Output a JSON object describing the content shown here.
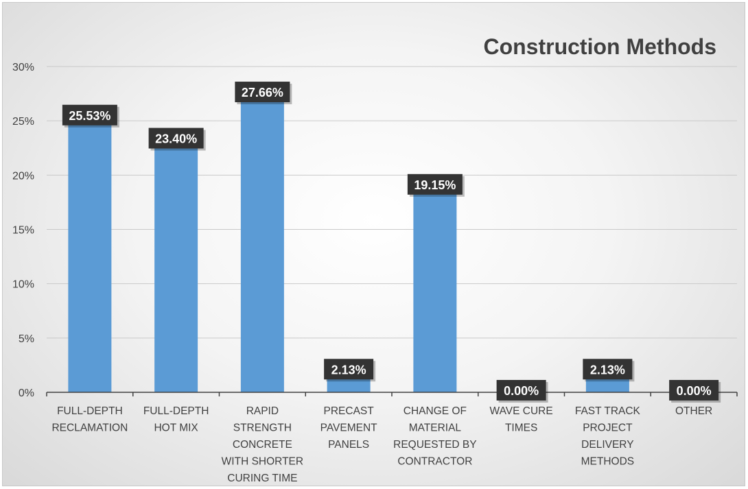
{
  "chart_data": {
    "type": "bar",
    "title": "Construction Methods",
    "categories": [
      [
        "FULL-DEPTH",
        "RECLAMATION"
      ],
      [
        "FULL-DEPTH",
        "HOT MIX"
      ],
      [
        "RAPID",
        "STRENGTH",
        "CONCRETE",
        "WITH SHORTER",
        "CURING TIME"
      ],
      [
        "PRECAST",
        "PAVEMENT",
        "PANELS"
      ],
      [
        "CHANGE OF",
        "MATERIAL",
        "REQUESTED BY",
        "CONTRACTOR"
      ],
      [
        "WAVE CURE",
        "TIMES"
      ],
      [
        "FAST TRACK",
        "PROJECT",
        "DELIVERY",
        "METHODS"
      ],
      [
        "OTHER"
      ]
    ],
    "values": [
      25.53,
      23.4,
      27.66,
      2.13,
      19.15,
      0.0,
      2.13,
      0.0
    ],
    "data_labels": [
      "25.53%",
      "23.40%",
      "27.66%",
      "2.13%",
      "19.15%",
      "0.00%",
      "2.13%",
      "0.00%"
    ],
    "y_ticks": [
      "0%",
      "5%",
      "10%",
      "15%",
      "20%",
      "25%",
      "30%"
    ],
    "ylim": [
      0,
      30
    ],
    "grid": true,
    "bar_color": "#5b9bd5",
    "label_bg_color": "#333333"
  }
}
